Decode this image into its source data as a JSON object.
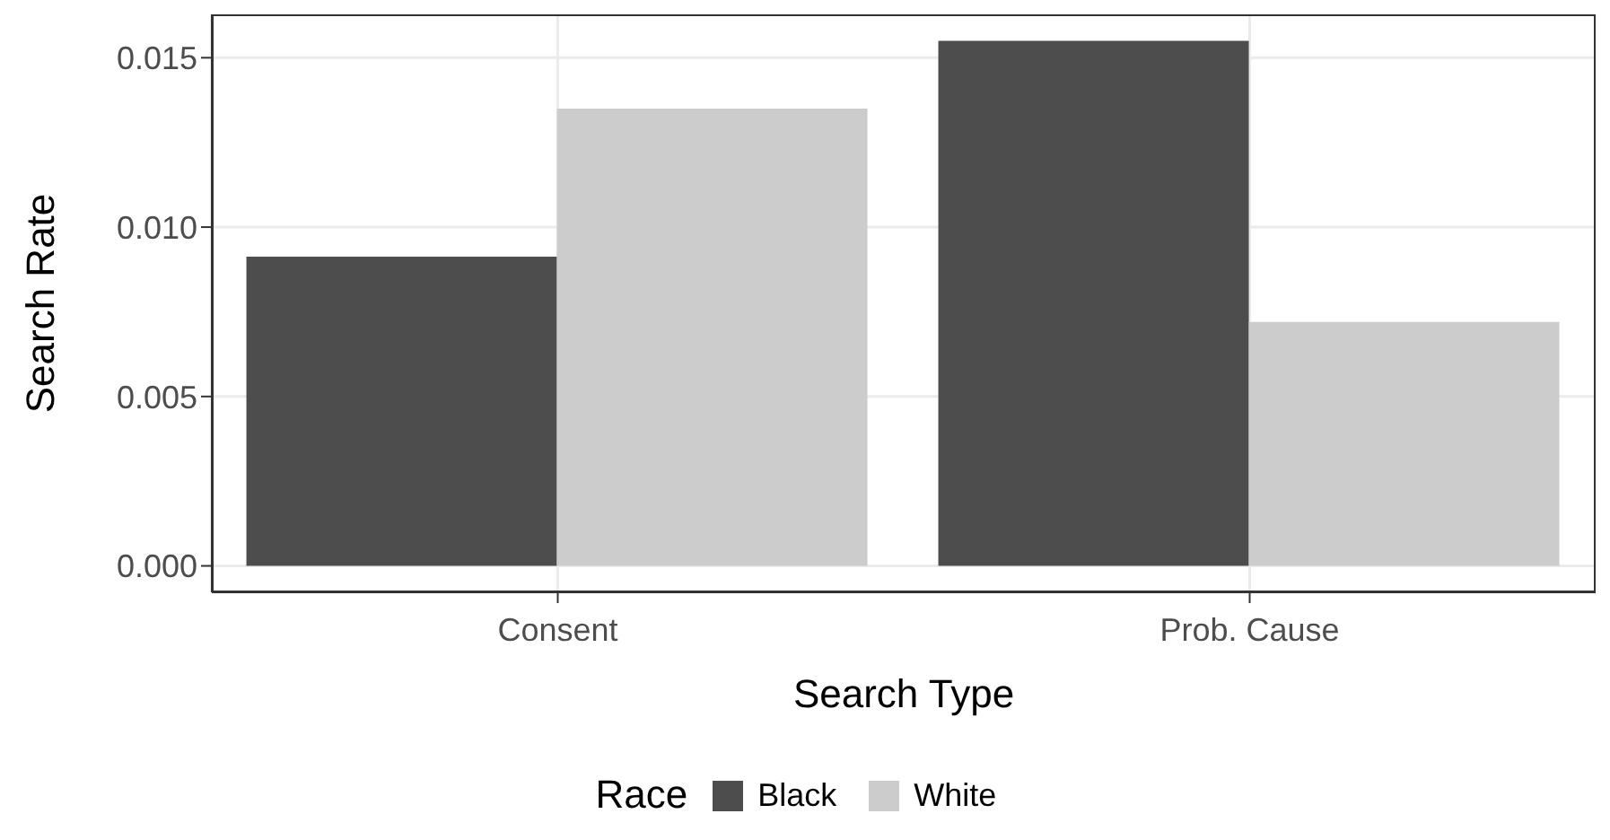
{
  "chart_data": {
    "type": "bar",
    "xlabel": "Search Type",
    "ylabel": "Search Rate",
    "legend_title": "Race",
    "categories": [
      "Consent",
      "Prob. Cause"
    ],
    "series": [
      {
        "name": "Black",
        "color": "#4d4d4d",
        "values": [
          0.00913,
          0.0155
        ]
      },
      {
        "name": "White",
        "color": "#cccccc",
        "values": [
          0.0135,
          0.0072
        ]
      }
    ],
    "ylim": [
      -0.00078,
      0.01628
    ],
    "yticks": [
      {
        "value": 0,
        "label": "0.000"
      },
      {
        "value": 0.005,
        "label": "0.005"
      },
      {
        "value": 0.01,
        "label": "0.010"
      },
      {
        "value": 0.015,
        "label": "0.015"
      }
    ],
    "grid": true,
    "legend": "bottom"
  }
}
